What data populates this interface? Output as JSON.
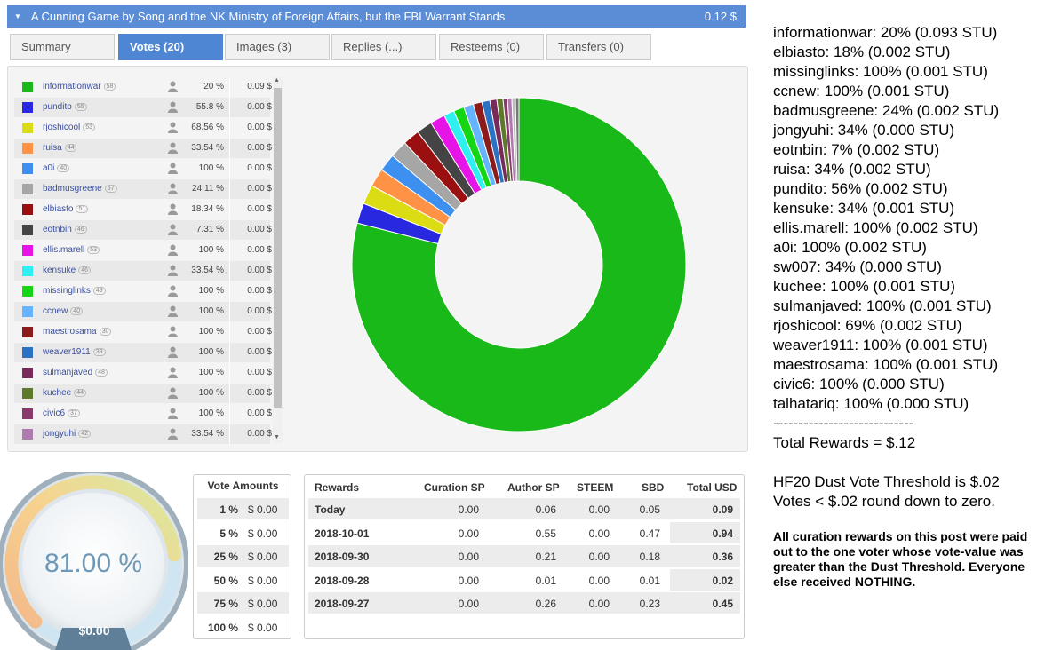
{
  "header": {
    "title": "A Cunning Game by Song and the NK Ministry of Foreign Affairs, but the FBI Warrant Stands",
    "value": "0.12 $"
  },
  "tabs": [
    "Summary",
    "Votes (20)",
    "Images (3)",
    "Replies (...)",
    "Resteems (0)",
    "Transfers (0)"
  ],
  "voters": [
    {
      "name": "informationwar",
      "rep": "58",
      "pct": "20 %",
      "amt": "0.09 $",
      "color": "#19b919"
    },
    {
      "name": "pundito",
      "rep": "55",
      "pct": "55.8 %",
      "amt": "0.00 $",
      "color": "#2828e0"
    },
    {
      "name": "rjoshicool",
      "rep": "53",
      "pct": "68.56 %",
      "amt": "0.00 $",
      "color": "#dcdc14"
    },
    {
      "name": "ruisa",
      "rep": "44",
      "pct": "33.54 %",
      "amt": "0.00 $",
      "color": "#ff9245"
    },
    {
      "name": "a0i",
      "rep": "40",
      "pct": "100 %",
      "amt": "0.00 $",
      "color": "#3d8ff0"
    },
    {
      "name": "badmusgreene",
      "rep": "57",
      "pct": "24.11 %",
      "amt": "0.00 $",
      "color": "#a6a6a6"
    },
    {
      "name": "elbiasto",
      "rep": "51",
      "pct": "18.34 %",
      "amt": "0.00 $",
      "color": "#9a1010"
    },
    {
      "name": "eotnbin",
      "rep": "46",
      "pct": "7.31 %",
      "amt": "0.00 $",
      "color": "#444444"
    },
    {
      "name": "ellis.marell",
      "rep": "53",
      "pct": "100 %",
      "amt": "0.00 $",
      "color": "#e614e6"
    },
    {
      "name": "kensuke",
      "rep": "46",
      "pct": "33.54 %",
      "amt": "0.00 $",
      "color": "#2ef0f0"
    },
    {
      "name": "missinglinks",
      "rep": "49",
      "pct": "100 %",
      "amt": "0.00 $",
      "color": "#14d614"
    },
    {
      "name": "ccnew",
      "rep": "40",
      "pct": "100 %",
      "amt": "0.00 $",
      "color": "#66b3ff"
    },
    {
      "name": "maestrosama",
      "rep": "30",
      "pct": "100 %",
      "amt": "0.00 $",
      "color": "#8c1c1c"
    },
    {
      "name": "weaver1911",
      "rep": "33",
      "pct": "100 %",
      "amt": "0.00 $",
      "color": "#2c72c4"
    },
    {
      "name": "sulmanjaved",
      "rep": "48",
      "pct": "100 %",
      "amt": "0.00 $",
      "color": "#7a2a5a"
    },
    {
      "name": "kuchee",
      "rep": "44",
      "pct": "100 %",
      "amt": "0.00 $",
      "color": "#5c7a2a"
    },
    {
      "name": "civic6",
      "rep": "37",
      "pct": "100 %",
      "amt": "0.00 $",
      "color": "#8a3a6a"
    },
    {
      "name": "jongyuhi",
      "rep": "42",
      "pct": "33.54 %",
      "amt": "0.00 $",
      "color": "#b07ab0"
    }
  ],
  "donut": {
    "slices": [
      {
        "value": 0.093,
        "color": "#19b919"
      },
      {
        "value": 0.0023,
        "color": "#2828e0"
      },
      {
        "value": 0.0022,
        "color": "#dcdc14"
      },
      {
        "value": 0.0021,
        "color": "#ff9245"
      },
      {
        "value": 0.002,
        "color": "#3d8ff0"
      },
      {
        "value": 0.002,
        "color": "#a6a6a6"
      },
      {
        "value": 0.0019,
        "color": "#9a1010"
      },
      {
        "value": 0.0018,
        "color": "#444444"
      },
      {
        "value": 0.0017,
        "color": "#e614e6"
      },
      {
        "value": 0.0012,
        "color": "#2ef0f0"
      },
      {
        "value": 0.0012,
        "color": "#14d614"
      },
      {
        "value": 0.0011,
        "color": "#66b3ff"
      },
      {
        "value": 0.001,
        "color": "#8c1c1c"
      },
      {
        "value": 0.0009,
        "color": "#2c72c4"
      },
      {
        "value": 0.0008,
        "color": "#7a2a5a"
      },
      {
        "value": 0.0007,
        "color": "#5c7a2a"
      },
      {
        "value": 0.0005,
        "color": "#8a3a6a"
      },
      {
        "value": 0.0005,
        "color": "#b07ab0"
      },
      {
        "value": 0.0004,
        "color": "#bbbbbb"
      },
      {
        "value": 0.0004,
        "color": "#777777"
      }
    ]
  },
  "gauge": {
    "value_text": "81.00 %",
    "bottom_text": "$0.00",
    "level": 0.81
  },
  "vote_amounts": {
    "header": "Vote Amounts",
    "rows": [
      {
        "pct": "1 %",
        "amt": "$ 0.00"
      },
      {
        "pct": "5 %",
        "amt": "$ 0.00"
      },
      {
        "pct": "25 %",
        "amt": "$ 0.00"
      },
      {
        "pct": "50 %",
        "amt": "$ 0.00"
      },
      {
        "pct": "75 %",
        "amt": "$ 0.00"
      },
      {
        "pct": "100 %",
        "amt": "$ 0.00"
      }
    ]
  },
  "rewards": {
    "headers": [
      "Rewards",
      "Curation SP",
      "Author SP",
      "STEEM",
      "SBD",
      "Total USD"
    ],
    "rows": [
      [
        "Today",
        "0.00",
        "0.06",
        "0.00",
        "0.05",
        "0.09"
      ],
      [
        "2018-10-01",
        "0.00",
        "0.55",
        "0.00",
        "0.47",
        "0.94"
      ],
      [
        "2018-09-30",
        "0.00",
        "0.21",
        "0.00",
        "0.18",
        "0.36"
      ],
      [
        "2018-09-28",
        "0.00",
        "0.01",
        "0.00",
        "0.01",
        "0.02"
      ],
      [
        "2018-09-27",
        "0.00",
        "0.26",
        "0.00",
        "0.23",
        "0.45"
      ]
    ]
  },
  "notes": {
    "lines": [
      "informationwar: 20% (0.093 STU)",
      "elbiasto: 18% (0.002 STU)",
      "missinglinks: 100% (0.001 STU)",
      "ccnew: 100% (0.001 STU)",
      "badmusgreene: 24% (0.002 STU)",
      "jongyuhi: 34% (0.000 STU)",
      "eotnbin: 7% (0.002 STU)",
      "ruisa: 34% (0.002 STU)",
      "pundito: 56% (0.002 STU)",
      "kensuke: 34% (0.001 STU)",
      "ellis.marell: 100% (0.002 STU)",
      "a0i: 100% (0.002 STU)",
      "sw007: 34% (0.000 STU)",
      "kuchee: 100% (0.001 STU)",
      "sulmanjaved: 100% (0.001 STU)",
      "rjoshicool: 69% (0.002 STU)",
      "weaver1911: 100% (0.001 STU)",
      "maestrosama: 100% (0.001 STU)",
      "civic6: 100% (0.000 STU)",
      "talhatariq: 100% (0.000 STU)",
      "----------------------------",
      "Total Rewards = $.12",
      "",
      "HF20 Dust Vote Threshold is $.02",
      "Votes < $.02 round down to zero."
    ],
    "bold_text": "All curation rewards on this post were paid out to the one voter whose vote-value was greater than the Dust Threshold.  Everyone else received NOTHING."
  }
}
